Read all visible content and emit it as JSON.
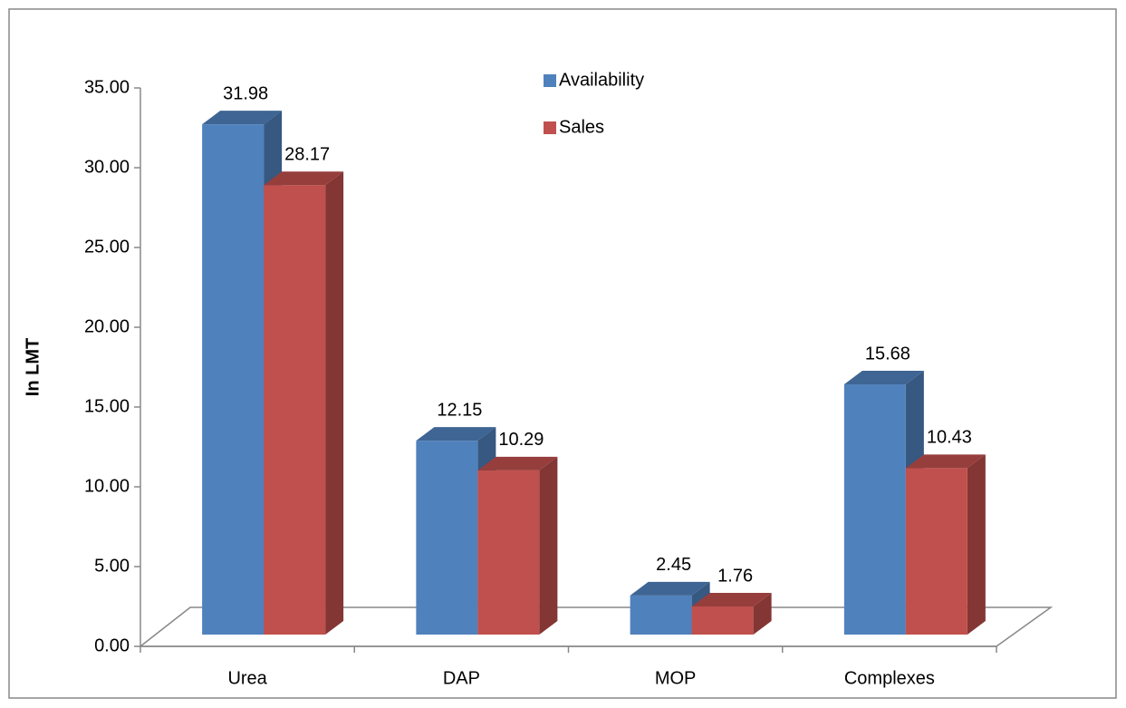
{
  "chart_data": {
    "type": "bar",
    "y_label": "In LMT",
    "categories": [
      "Urea",
      "DAP",
      "MOP",
      "Complexes"
    ],
    "series": [
      {
        "name": "Availability",
        "color": "#4f81bd",
        "values": [
          31.98,
          12.15,
          2.45,
          15.68
        ]
      },
      {
        "name": "Sales",
        "color": "#c0504d",
        "values": [
          28.17,
          10.29,
          1.76,
          10.43
        ]
      }
    ],
    "ylim": [
      0,
      35
    ],
    "yticks": [
      {
        "value": 0,
        "label": "0.00"
      },
      {
        "value": 5,
        "label": "5.00"
      },
      {
        "value": 10,
        "label": "10.00"
      },
      {
        "value": 15,
        "label": "15.00"
      },
      {
        "value": 20,
        "label": "20.00"
      },
      {
        "value": 25,
        "label": "25.00"
      },
      {
        "value": 30,
        "label": "30.00"
      },
      {
        "value": 35,
        "label": "35.00"
      }
    ],
    "legend": "top"
  }
}
